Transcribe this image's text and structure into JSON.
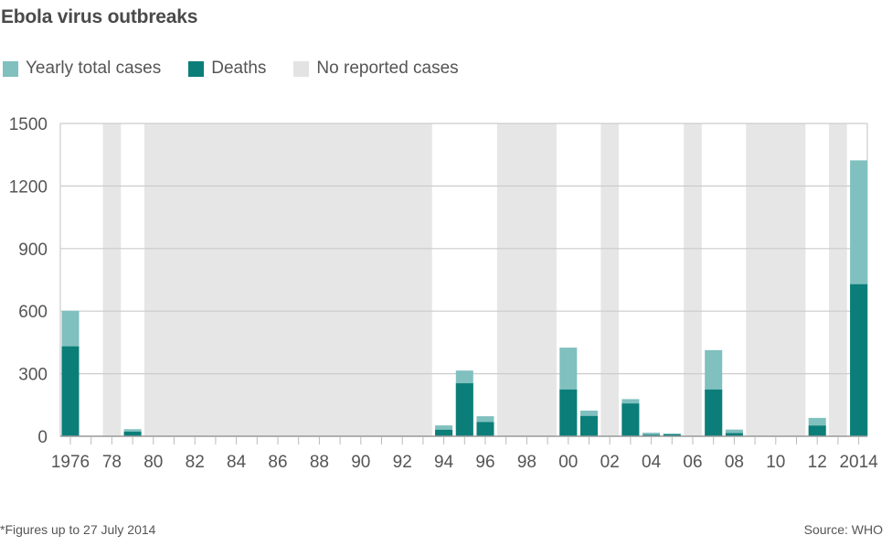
{
  "title": "Ebola virus outbreaks",
  "legend": [
    {
      "label": "Yearly total cases",
      "color": "#80c0bf"
    },
    {
      "label": "Deaths",
      "color": "#0b7e79"
    },
    {
      "label": "No reported cases",
      "color": "#e3e3e3"
    }
  ],
  "footnote": "*Figures up to 27 July 2014",
  "source": "Source: WHO",
  "colors": {
    "cases": "#80c0bf",
    "deaths": "#0b7e79",
    "no_cases_band": "#e6e6e6",
    "grid": "#cccccc",
    "axis": "#999999"
  },
  "chart_data": {
    "type": "bar",
    "stacked": "overlay",
    "title": "Ebola virus outbreaks",
    "xlabel": "",
    "ylabel": "",
    "ylim": [
      0,
      1500
    ],
    "yticks": [
      0,
      300,
      600,
      900,
      1200,
      1500
    ],
    "xlim": [
      1976,
      2014
    ],
    "xtick_labels": [
      {
        "year": 1976,
        "label": "1976"
      },
      {
        "year": 1978,
        "label": "78"
      },
      {
        "year": 1980,
        "label": "80"
      },
      {
        "year": 1982,
        "label": "82"
      },
      {
        "year": 1984,
        "label": "84"
      },
      {
        "year": 1986,
        "label": "86"
      },
      {
        "year": 1988,
        "label": "88"
      },
      {
        "year": 1990,
        "label": "90"
      },
      {
        "year": 1992,
        "label": "92"
      },
      {
        "year": 1994,
        "label": "94"
      },
      {
        "year": 1996,
        "label": "96"
      },
      {
        "year": 1998,
        "label": "98"
      },
      {
        "year": 2000,
        "label": "00"
      },
      {
        "year": 2002,
        "label": "02"
      },
      {
        "year": 2004,
        "label": "04"
      },
      {
        "year": 2006,
        "label": "06"
      },
      {
        "year": 2008,
        "label": "08"
      },
      {
        "year": 2010,
        "label": "10"
      },
      {
        "year": 2012,
        "label": "12"
      },
      {
        "year": 2014,
        "label": "2014"
      }
    ],
    "grid": true,
    "legend_position": "top-left",
    "categories": [
      1976,
      1979,
      1994,
      1995,
      1996,
      2000,
      2001,
      2003,
      2004,
      2005,
      2007,
      2008,
      2012,
      2014
    ],
    "series": [
      {
        "name": "Yearly total cases",
        "values": [
          602,
          34,
          52,
          315,
          96,
          425,
          123,
          178,
          17,
          12,
          413,
          32,
          88,
          1323
        ]
      },
      {
        "name": "Deaths",
        "values": [
          431,
          22,
          31,
          254,
          68,
          224,
          97,
          157,
          7,
          10,
          224,
          15,
          51,
          729
        ]
      }
    ],
    "no_reported_cases_years": [
      [
        1977.5,
        1978.5
      ],
      [
        1979.5,
        1993.5
      ],
      [
        1996.5,
        1999.5
      ],
      [
        2001.5,
        2002.5
      ],
      [
        2005.5,
        2006.5
      ],
      [
        2008.5,
        2011.5
      ],
      [
        2012.5,
        2013.5
      ]
    ]
  }
}
